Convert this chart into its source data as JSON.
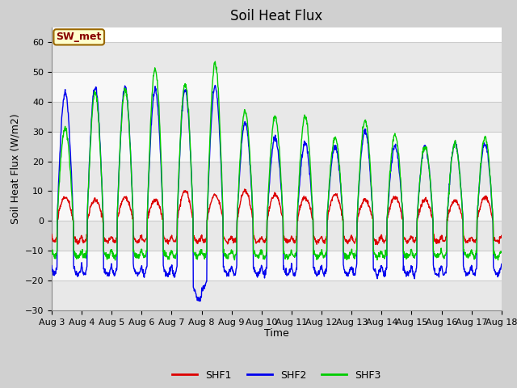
{
  "title": "Soil Heat Flux",
  "xlabel": "Time",
  "ylabel": "Soil Heat Flux (W/m2)",
  "ylim": [
    -30,
    65
  ],
  "yticks": [
    -30,
    -20,
    -10,
    0,
    10,
    20,
    30,
    40,
    50,
    60
  ],
  "date_labels": [
    "Aug 3",
    "Aug 4",
    "Aug 5",
    "Aug 6",
    "Aug 7",
    "Aug 8",
    "Aug 9",
    "Aug 10",
    "Aug 11",
    "Aug 12",
    "Aug 13",
    "Aug 14",
    "Aug 15",
    "Aug 16",
    "Aug 17",
    "Aug 18"
  ],
  "colors": {
    "SHF1": "#dd0000",
    "SHF2": "#0000ee",
    "SHF3": "#00cc00"
  },
  "legend_label": "SW_met",
  "legend_text_color": "#880000",
  "legend_bg": "#ffffcc",
  "legend_border": "#996600",
  "fig_bg": "#d0d0d0",
  "plot_bg": "#ffffff",
  "band_color_light": "#e8e8e8",
  "band_color_dark": "#f8f8f8",
  "series_names": [
    "SHF1",
    "SHF2",
    "SHF3"
  ],
  "title_fontsize": 12,
  "axis_fontsize": 9,
  "tick_fontsize": 8
}
